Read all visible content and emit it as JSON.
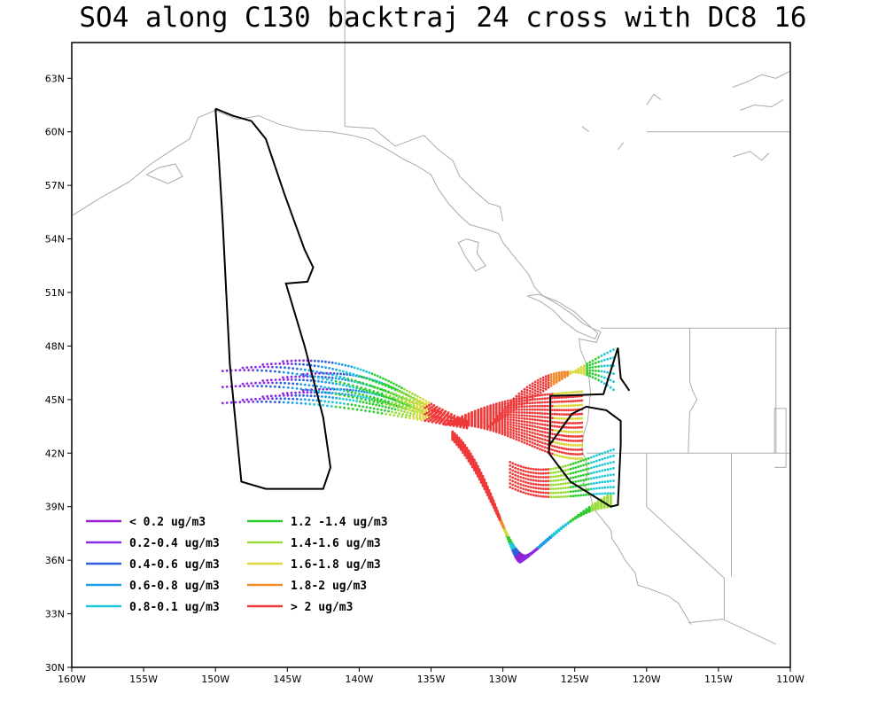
{
  "title": "SO4 along C130 backtraj 24 cross with DC8 16",
  "map": {
    "lon_range": [
      -160,
      -110
    ],
    "lat_range": [
      30,
      65
    ],
    "x_tick_labels": [
      "160W",
      "155W",
      "150W",
      "145W",
      "140W",
      "135W",
      "130W",
      "125W",
      "120W",
      "115W",
      "110W"
    ],
    "y_tick_labels": [
      "30N",
      "33N",
      "36N",
      "39N",
      "42N",
      "45N",
      "48N",
      "51N",
      "54N",
      "57N",
      "60N",
      "63N"
    ],
    "x_tick_values": [
      -160,
      -155,
      -150,
      -145,
      -140,
      -135,
      -130,
      -125,
      -120,
      -115,
      -110
    ],
    "y_tick_values": [
      30,
      33,
      36,
      39,
      42,
      45,
      48,
      51,
      54,
      57,
      60,
      63
    ],
    "coastline_color": "#aaaaaa",
    "flight_track_color": "#000000"
  },
  "legend": [
    {
      "label": "< 0.2 ug/m3",
      "color": "#9a1fcf"
    },
    {
      "label": "0.2-0.4 ug/m3",
      "color": "#8a2be2"
    },
    {
      "label": "0.4-0.6 ug/m3",
      "color": "#2f5fdc"
    },
    {
      "label": "0.6-0.8 ug/m3",
      "color": "#1e9be8"
    },
    {
      "label": "0.8-0.1 ug/m3",
      "color": "#1ec8d8"
    },
    {
      "label": "1.2 -1.4 ug/m3",
      "color": "#2ecc2e"
    },
    {
      "label": "1.4-1.6 ug/m3",
      "color": "#9adc3a"
    },
    {
      "label": "1.6-1.8 ug/m3",
      "color": "#d8d83a"
    },
    {
      "label": "1.8-2 ug/m3",
      "color": "#f08a2a"
    },
    {
      "label": "> 2 ug/m3",
      "color": "#ee3a3a"
    }
  ]
}
